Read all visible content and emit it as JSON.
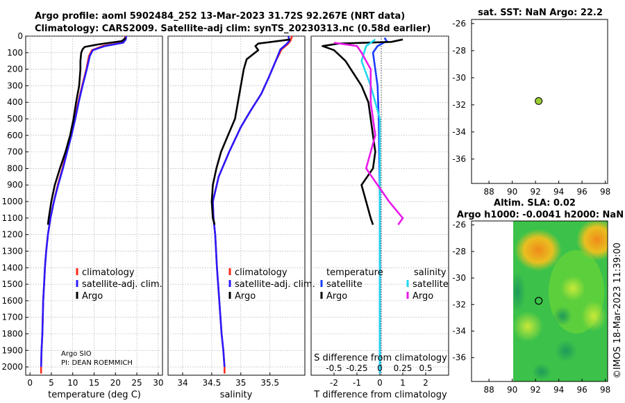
{
  "header": {
    "line1": "Argo profile: aoml 5902484_252 13-Mar-2023 31.72S 92.267E (NRT data)",
    "line2": "Climatology: CARS2009. Satellite-adj clim: synTS_20230313.nc (0.58d earlier)"
  },
  "colors": {
    "climatology": "#ff2a1a",
    "satellite": "#2a1aff",
    "argo": "#000000",
    "temp_diff": "#1a3cff",
    "sal_sat": "#22d8f0",
    "sal_argo": "#e81ae8",
    "sst_marker": "#9acd32"
  },
  "chart_data": [
    {
      "type": "line",
      "id": "temperature",
      "xlabel": "temperature (deg C)",
      "xlim": [
        -1,
        31
      ],
      "xticks": [
        "0",
        "5",
        "10",
        "15",
        "20",
        "25",
        "30"
      ],
      "ylim": [
        0,
        2050
      ],
      "yticks": [
        "0",
        "100",
        "200",
        "300",
        "400",
        "500",
        "600",
        "700",
        "800",
        "900",
        "1000",
        "1100",
        "1200",
        "1300",
        "1400",
        "1500",
        "1600",
        "1700",
        "1800",
        "1900",
        "2000"
      ],
      "legend": {
        "position": "middle-right",
        "items": [
          "climatology",
          "satellite-adj. clim.",
          "Argo"
        ]
      },
      "annotation": [
        "Argo SIO",
        "PI: DEAN ROEMMICH"
      ],
      "series": [
        {
          "name": "climatology",
          "color": "#ff2a1a",
          "points": [
            [
              22.3,
              0
            ],
            [
              22.2,
              20
            ],
            [
              21.5,
              40
            ],
            [
              17,
              60
            ],
            [
              14.5,
              85
            ],
            [
              13.8,
              120
            ],
            [
              13.2,
              200
            ],
            [
              12.2,
              300
            ],
            [
              11.3,
              400
            ],
            [
              10.5,
              500
            ],
            [
              9.6,
              600
            ],
            [
              8.6,
              700
            ],
            [
              7.6,
              800
            ],
            [
              6.5,
              900
            ],
            [
              5.6,
              1000
            ],
            [
              4.8,
              1100
            ],
            [
              4.2,
              1200
            ],
            [
              3.8,
              1300
            ],
            [
              3.5,
              1400
            ],
            [
              3.3,
              1500
            ],
            [
              3.1,
              1600
            ],
            [
              3.0,
              1700
            ],
            [
              2.9,
              1800
            ],
            [
              2.7,
              1900
            ],
            [
              2.6,
              2000
            ],
            [
              2.6,
              2040
            ]
          ]
        },
        {
          "name": "satellite-adj. clim.",
          "color": "#2a1aff",
          "points": [
            [
              22.5,
              0
            ],
            [
              22.4,
              20
            ],
            [
              21.8,
              40
            ],
            [
              17.5,
              60
            ],
            [
              14.7,
              85
            ],
            [
              14.0,
              120
            ],
            [
              13.3,
              200
            ],
            [
              12.3,
              300
            ],
            [
              11.4,
              400
            ],
            [
              10.6,
              500
            ],
            [
              9.7,
              600
            ],
            [
              8.7,
              700
            ],
            [
              7.7,
              800
            ],
            [
              6.6,
              900
            ],
            [
              5.6,
              1000
            ],
            [
              4.8,
              1100
            ],
            [
              4.2,
              1200
            ],
            [
              3.8,
              1300
            ],
            [
              3.5,
              1400
            ],
            [
              3.3,
              1500
            ],
            [
              3.1,
              1600
            ],
            [
              3.0,
              1700
            ],
            [
              2.9,
              1800
            ],
            [
              2.7,
              1900
            ],
            [
              2.6,
              2000
            ]
          ]
        },
        {
          "name": "Argo",
          "color": "#000000",
          "points": [
            [
              22.4,
              10
            ],
            [
              21.5,
              30
            ],
            [
              16,
              50
            ],
            [
              12.8,
              65
            ],
            [
              12.3,
              80
            ],
            [
              12.0,
              100
            ],
            [
              11.8,
              150
            ],
            [
              11.8,
              200
            ],
            [
              11.5,
              300
            ],
            [
              10.8,
              400
            ],
            [
              10.2,
              500
            ],
            [
              9.4,
              600
            ],
            [
              8.3,
              700
            ],
            [
              7.0,
              800
            ],
            [
              5.8,
              900
            ],
            [
              5.0,
              1000
            ],
            [
              4.4,
              1100
            ],
            [
              4.2,
              1140
            ]
          ]
        }
      ]
    },
    {
      "type": "line",
      "id": "salinity",
      "xlabel": "salinity",
      "xlim": [
        33.75,
        36.1
      ],
      "xticks": [
        "34",
        "34.5",
        "35",
        "35.5"
      ],
      "ylim": [
        0,
        2050
      ],
      "legend": {
        "position": "middle-right",
        "items": [
          "climatology",
          "satellite-adj. clim.",
          "Argo"
        ]
      },
      "series": [
        {
          "name": "climatology",
          "color": "#ff2a1a",
          "points": [
            [
              35.88,
              0
            ],
            [
              35.85,
              30
            ],
            [
              35.8,
              50
            ],
            [
              35.7,
              80
            ],
            [
              35.6,
              150
            ],
            [
              35.48,
              250
            ],
            [
              35.35,
              350
            ],
            [
              35.17,
              450
            ],
            [
              35.0,
              550
            ],
            [
              34.8,
              700
            ],
            [
              34.62,
              850
            ],
            [
              34.52,
              1000
            ],
            [
              34.53,
              1100
            ],
            [
              34.56,
              1200
            ],
            [
              34.59,
              1400
            ],
            [
              34.63,
              1600
            ],
            [
              34.67,
              1800
            ],
            [
              34.7,
              1900
            ],
            [
              34.72,
              2000
            ],
            [
              34.72,
              2040
            ]
          ]
        },
        {
          "name": "satellite-adj. clim.",
          "color": "#2a1aff",
          "points": [
            [
              35.82,
              0
            ],
            [
              35.83,
              30
            ],
            [
              35.78,
              50
            ],
            [
              35.68,
              80
            ],
            [
              35.6,
              150
            ],
            [
              35.48,
              250
            ],
            [
              35.35,
              350
            ],
            [
              35.17,
              450
            ],
            [
              35.0,
              550
            ],
            [
              34.8,
              700
            ],
            [
              34.62,
              850
            ],
            [
              34.52,
              1000
            ],
            [
              34.53,
              1100
            ],
            [
              34.56,
              1200
            ],
            [
              34.59,
              1400
            ],
            [
              34.63,
              1600
            ],
            [
              34.67,
              1800
            ],
            [
              34.7,
              1900
            ],
            [
              34.72,
              2000
            ]
          ]
        },
        {
          "name": "Argo",
          "color": "#000000",
          "points": [
            [
              35.85,
              20
            ],
            [
              35.3,
              45
            ],
            [
              35.25,
              60
            ],
            [
              35.3,
              85
            ],
            [
              35.1,
              140
            ],
            [
              35.05,
              200
            ],
            [
              35.0,
              300
            ],
            [
              34.95,
              400
            ],
            [
              34.9,
              500
            ],
            [
              34.78,
              600
            ],
            [
              34.66,
              700
            ],
            [
              34.58,
              800
            ],
            [
              34.52,
              900
            ],
            [
              34.5,
              1000
            ],
            [
              34.52,
              1100
            ],
            [
              34.55,
              1140
            ]
          ]
        }
      ]
    },
    {
      "type": "line",
      "id": "differences",
      "xlabel": "T difference from climatology",
      "xlabel2": "S difference from climatology",
      "xlim": [
        -3,
        3
      ],
      "xticks": [
        "-2",
        "-1",
        "0",
        "1",
        "2"
      ],
      "xticks2": [
        "-0.5",
        "-0.25",
        "0",
        "0.25",
        "0.5"
      ],
      "legend": {
        "position": "middle",
        "headers": [
          "temperature",
          "salinity"
        ],
        "left": [
          "satellite",
          "Argo"
        ],
        "right": [
          "satellite",
          "Argo"
        ]
      },
      "series": [
        {
          "name": "temperature satellite",
          "color": "#1a3cff",
          "points": [
            [
              0.2,
              10
            ],
            [
              0.3,
              30
            ],
            [
              -0.1,
              60
            ],
            [
              -0.3,
              100
            ],
            [
              -0.2,
              200
            ],
            [
              -0.1,
              300
            ],
            [
              -0.05,
              500
            ],
            [
              0,
              1000
            ],
            [
              0,
              1500
            ],
            [
              0,
              2000
            ],
            [
              0,
              2040
            ]
          ]
        },
        {
          "name": "temperature Argo",
          "color": "#000000",
          "points": [
            [
              1.0,
              20
            ],
            [
              0.5,
              35
            ],
            [
              -1.8,
              45
            ],
            [
              -2.5,
              60
            ],
            [
              -2.0,
              85
            ],
            [
              -1.5,
              150
            ],
            [
              -0.8,
              300
            ],
            [
              -0.5,
              400
            ],
            [
              -0.3,
              600
            ],
            [
              -0.2,
              700
            ],
            [
              -0.3,
              800
            ],
            [
              -0.8,
              900
            ],
            [
              -0.6,
              1000
            ],
            [
              -0.4,
              1100
            ],
            [
              -0.3,
              1140
            ]
          ]
        },
        {
          "name": "salinity satellite",
          "color": "#22d8f0",
          "points": [
            [
              -0.05,
              20
            ],
            [
              -0.15,
              60
            ],
            [
              -0.2,
              150
            ],
            [
              -0.1,
              300
            ],
            [
              0,
              500
            ],
            [
              0,
              1000
            ],
            [
              0,
              1500
            ],
            [
              0,
              2000
            ],
            [
              0,
              2040
            ]
          ]
        },
        {
          "name": "salinity Argo",
          "color": "#e81ae8",
          "points": [
            [
              -0.5,
              40
            ],
            [
              -0.25,
              60
            ],
            [
              -0.2,
              100
            ],
            [
              -0.1,
              200
            ],
            [
              -0.1,
              400
            ],
            [
              -0.05,
              600
            ],
            [
              -0.15,
              800
            ],
            [
              0.1,
              1000
            ],
            [
              0.25,
              1100
            ],
            [
              0.2,
              1140
            ]
          ]
        }
      ]
    },
    {
      "type": "scatter",
      "id": "sst_map",
      "title": "sat. SST: NaN Argo: 22.2",
      "xlim": [
        86.5,
        98.2
      ],
      "ylim": [
        -37.8,
        -25.7
      ],
      "xticks": [
        "88",
        "90",
        "92",
        "94",
        "96",
        "98"
      ],
      "yticks": [
        "-26",
        "-28",
        "-30",
        "-32",
        "-34",
        "-36"
      ],
      "points": [
        [
          92.27,
          -31.72
        ]
      ]
    },
    {
      "type": "heatmap",
      "id": "sla_map",
      "title1": "Altim. SLA: 0.02",
      "title2": "Argo h1000: -0.0041 h2000: NaN",
      "xlim": [
        86.5,
        98.2
      ],
      "ylim": [
        -37.8,
        -25.7
      ],
      "xticks": [
        "88",
        "90",
        "92",
        "94",
        "96",
        "98"
      ],
      "yticks": [
        "-26",
        "-28",
        "-30",
        "-32",
        "-34",
        "-36"
      ],
      "points": [
        [
          92.27,
          -31.72
        ]
      ]
    }
  ],
  "footer_stamp": "©IMOS 18-Mar-2023 11:39:00"
}
